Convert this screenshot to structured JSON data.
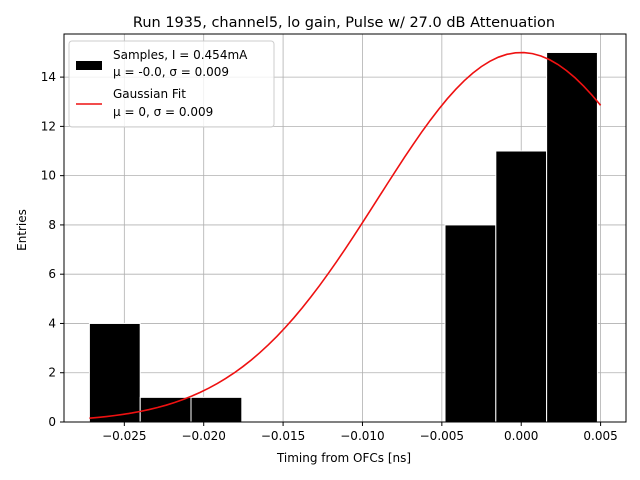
{
  "chart_data": {
    "type": "bar",
    "title": "Run 1935, channel5, lo gain, Pulse w/ 27.0 dB Attenuation",
    "xlabel": "Timing from OFCs [ns]",
    "ylabel": "Entries",
    "xlim": [
      -0.0288,
      0.0066
    ],
    "ylim": [
      0,
      15.75
    ],
    "grid": true,
    "legend_position": "top-left",
    "x_ticks": [
      {
        "value": -0.025,
        "label": "−0.025"
      },
      {
        "value": -0.02,
        "label": "−0.020"
      },
      {
        "value": -0.015,
        "label": "−0.015"
      },
      {
        "value": -0.01,
        "label": "−0.010"
      },
      {
        "value": -0.005,
        "label": "−0.005"
      },
      {
        "value": 0.0,
        "label": "0.000"
      },
      {
        "value": 0.005,
        "label": "0.005"
      }
    ],
    "y_ticks": [
      {
        "value": 0,
        "label": "0"
      },
      {
        "value": 2,
        "label": "2"
      },
      {
        "value": 4,
        "label": "4"
      },
      {
        "value": 6,
        "label": "6"
      },
      {
        "value": 8,
        "label": "8"
      },
      {
        "value": 10,
        "label": "10"
      },
      {
        "value": 12,
        "label": "12"
      },
      {
        "value": 14,
        "label": "14"
      }
    ],
    "histogram": {
      "name_line1": "Samples, I = 0.454mA",
      "name_line2": "μ = -0.0, σ = 0.009",
      "color": "#000000",
      "bin_edges": [
        -0.0272,
        -0.024,
        -0.0208,
        -0.0176,
        -0.0144,
        -0.0112,
        -0.008,
        -0.0048,
        -0.0016,
        0.0016,
        0.0048
      ],
      "counts": [
        4,
        1,
        1,
        0,
        0,
        0,
        0,
        8,
        11,
        15
      ]
    },
    "fit": {
      "name_line1": "Gaussian Fit",
      "name_line2": "μ = 0, σ = 0.009",
      "color": "#ee1111",
      "mu": 0.0,
      "sigma": 0.009,
      "amplitude": 15.0,
      "x_range": [
        -0.0272,
        0.005
      ]
    }
  }
}
